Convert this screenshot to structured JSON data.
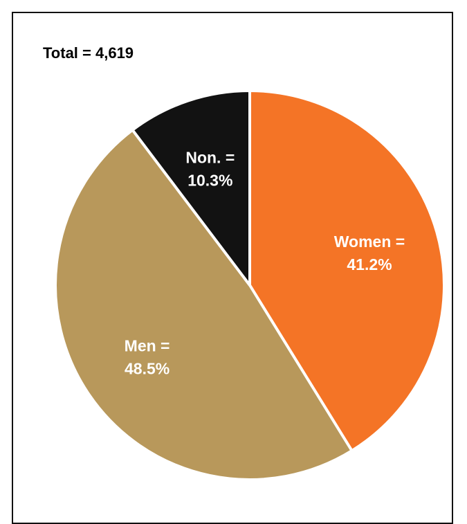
{
  "total_label": "Total = 4,619",
  "chart_data": {
    "type": "pie",
    "slices": [
      {
        "name": "Women",
        "value": 41.2,
        "label_line1": "Women =",
        "label_line2": "41.2%",
        "color": "#F47426"
      },
      {
        "name": "Men",
        "value": 48.5,
        "label_line1": "Men =",
        "label_line2": "48.5%",
        "color": "#B8985B"
      },
      {
        "name": "Non.",
        "value": 10.3,
        "label_line1": "Non. =",
        "label_line2": "10.3%",
        "color": "#121212"
      }
    ],
    "start": "12 o'clock",
    "direction": "clockwise",
    "separator_color": "#FFFFFF"
  }
}
